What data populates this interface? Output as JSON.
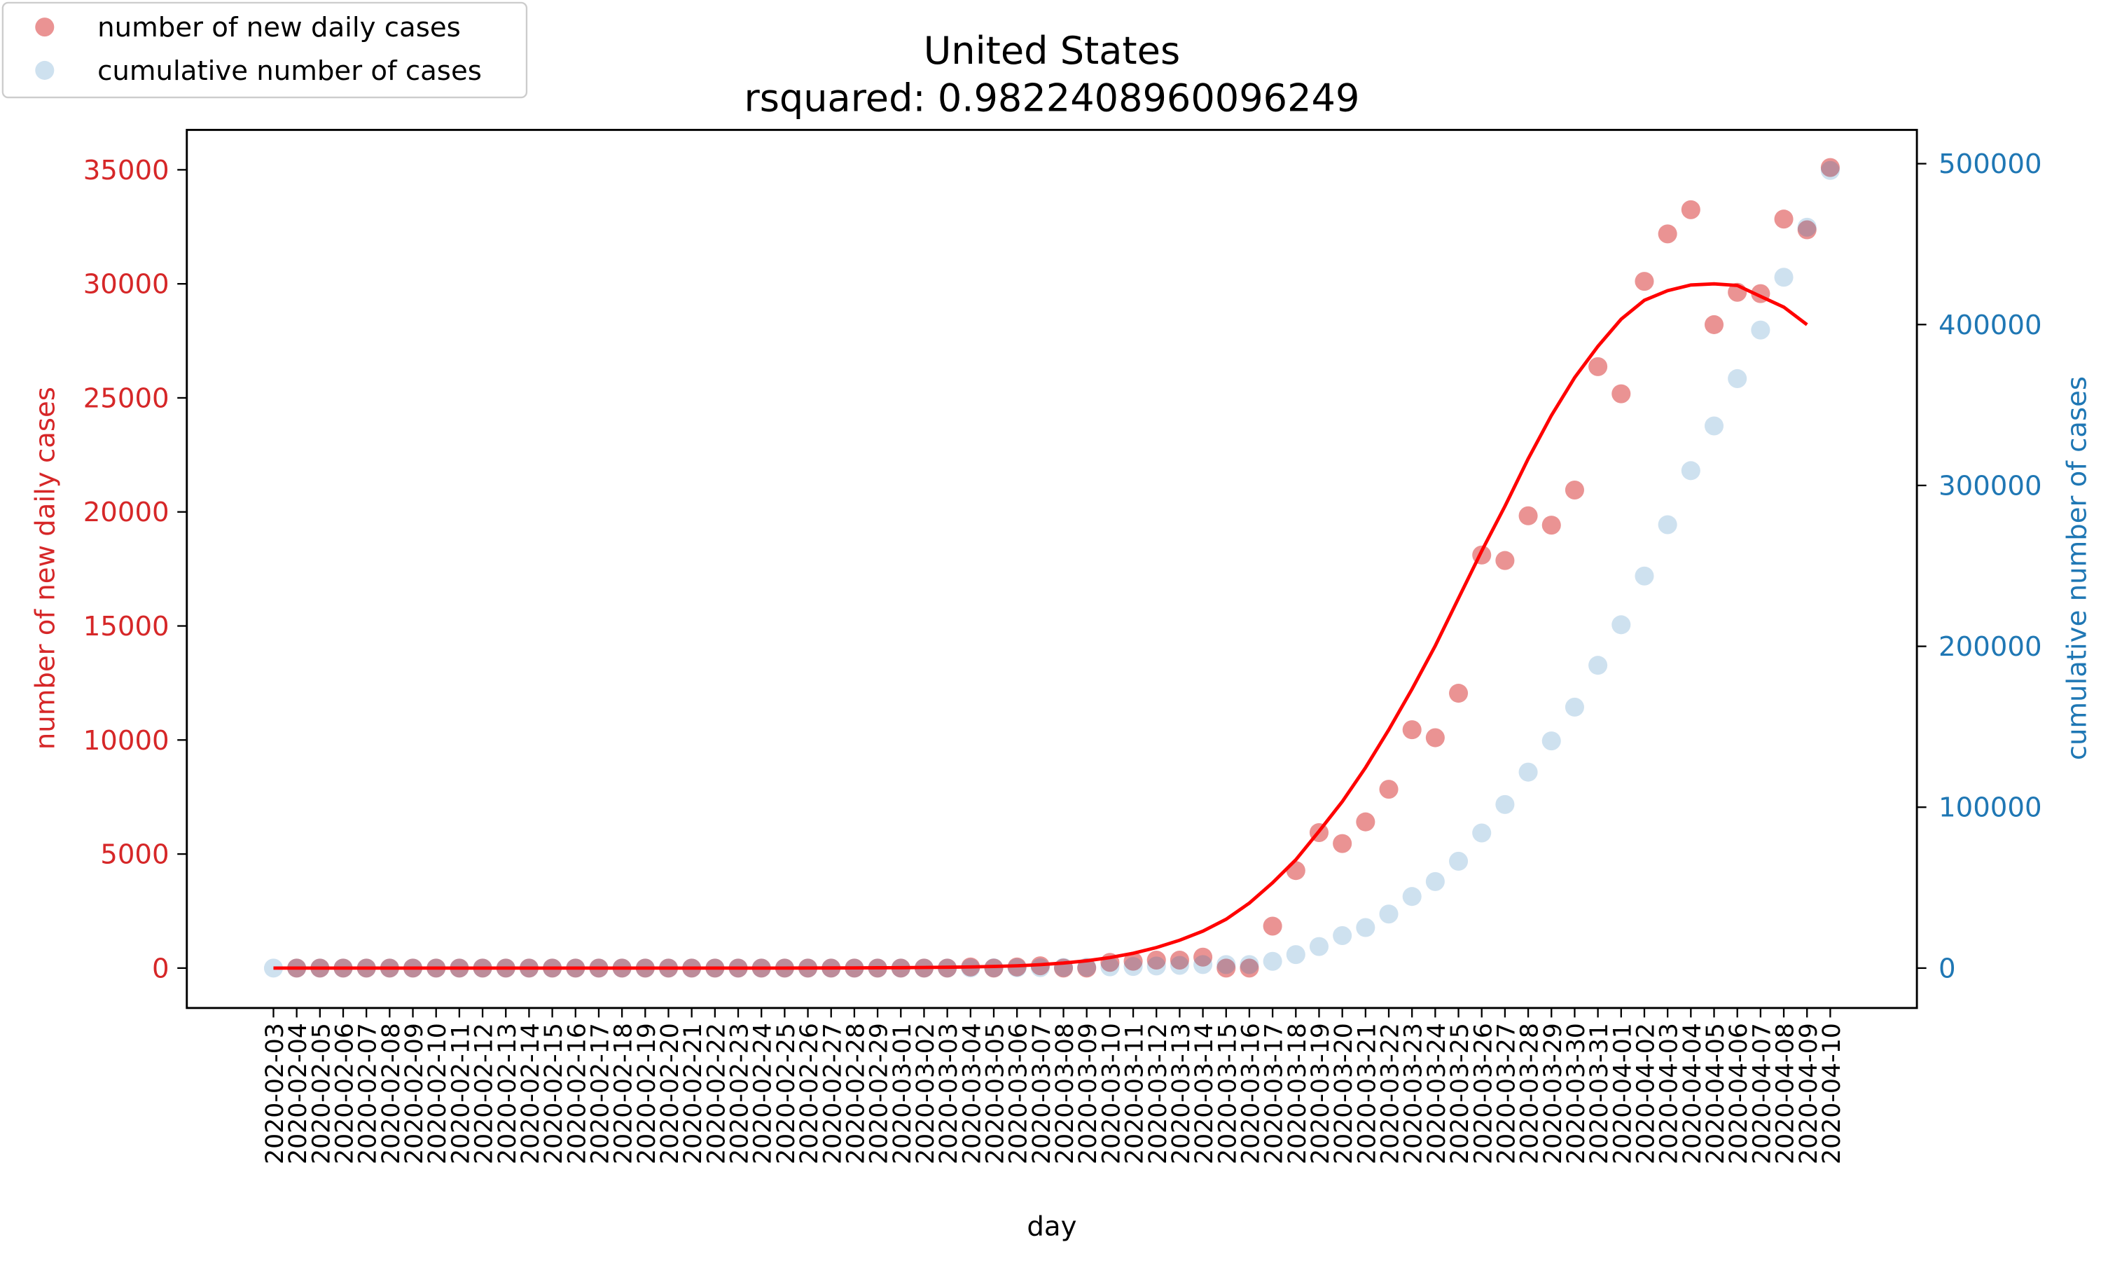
{
  "chart_data": {
    "type": "scatter",
    "title": "United States",
    "subtitle": "rsquared: 0.9822408960096249",
    "xlabel": "day",
    "ylabel": "number of new daily cases",
    "y2label": "cumulative number of cases",
    "categories": [
      "2020-02-03",
      "2020-02-04",
      "2020-02-05",
      "2020-02-06",
      "2020-02-07",
      "2020-02-08",
      "2020-02-09",
      "2020-02-10",
      "2020-02-11",
      "2020-02-12",
      "2020-02-13",
      "2020-02-14",
      "2020-02-15",
      "2020-02-16",
      "2020-02-17",
      "2020-02-18",
      "2020-02-19",
      "2020-02-20",
      "2020-02-21",
      "2020-02-22",
      "2020-02-23",
      "2020-02-24",
      "2020-02-25",
      "2020-02-26",
      "2020-02-27",
      "2020-02-28",
      "2020-02-29",
      "2020-03-01",
      "2020-03-02",
      "2020-03-03",
      "2020-03-04",
      "2020-03-05",
      "2020-03-06",
      "2020-03-07",
      "2020-03-08",
      "2020-03-09",
      "2020-03-10",
      "2020-03-11",
      "2020-03-12",
      "2020-03-13",
      "2020-03-14",
      "2020-03-15",
      "2020-03-16",
      "2020-03-17",
      "2020-03-18",
      "2020-03-19",
      "2020-03-20",
      "2020-03-21",
      "2020-03-22",
      "2020-03-23",
      "2020-03-24",
      "2020-03-25",
      "2020-03-26",
      "2020-03-27",
      "2020-03-28",
      "2020-03-29",
      "2020-03-30",
      "2020-03-31",
      "2020-04-01",
      "2020-04-02",
      "2020-04-03",
      "2020-04-04",
      "2020-04-05",
      "2020-04-06",
      "2020-04-07",
      "2020-04-08",
      "2020-04-09",
      "2020-04-10"
    ],
    "series": [
      {
        "name": "number of new daily cases",
        "color": "#d62728",
        "opacity": 0.5,
        "values": [
          null,
          0,
          0,
          0,
          0,
          0,
          0,
          0,
          0,
          0,
          0,
          0,
          0,
          0,
          0,
          0,
          0,
          0,
          0,
          0,
          0,
          0,
          0,
          0,
          0,
          0,
          0,
          0,
          0,
          0,
          50,
          0,
          50,
          100,
          0,
          0,
          250,
          300,
          350,
          350,
          480,
          0,
          0,
          1840,
          4275,
          5940,
          5460,
          6410,
          7840,
          10450,
          10100,
          12050,
          18110,
          17870,
          19830,
          19420,
          20960,
          26370,
          25180,
          30110,
          32190,
          33250,
          28210,
          29630,
          29570,
          32840,
          32370,
          35100
        ]
      },
      {
        "name": "cumulative number of cases",
        "color": "#1f77b4",
        "opacity": 0.22,
        "axis": "y2",
        "values": [
          0,
          0,
          0,
          0,
          0,
          0,
          0,
          0,
          0,
          0,
          0,
          0,
          0,
          0,
          0,
          0,
          0,
          0,
          0,
          0,
          0,
          0,
          0,
          0,
          0,
          0,
          0,
          0,
          0,
          0,
          100,
          150,
          200,
          300,
          400,
          550,
          750,
          1000,
          1300,
          1700,
          2200,
          2200,
          2200,
          4200,
          8400,
          13400,
          20200,
          25200,
          33600,
          44500,
          53800,
          66400,
          84000,
          101700,
          121800,
          141200,
          162200,
          188200,
          213400,
          243700,
          275600,
          309200,
          337000,
          366400,
          396600,
          429400,
          460500,
          495800
        ]
      },
      {
        "type": "line",
        "color": "#ff0000",
        "values": [
          0,
          0,
          0,
          0,
          0,
          0,
          0,
          0,
          0,
          0,
          0,
          0,
          0,
          0,
          0,
          0,
          0,
          0,
          0,
          0,
          0,
          0,
          0,
          3,
          5,
          8,
          12,
          18,
          26,
          36,
          50,
          70,
          100,
          150,
          220,
          320,
          460,
          650,
          900,
          1220,
          1620,
          2140,
          2850,
          3740,
          4750,
          6000,
          7300,
          8790,
          10450,
          12230,
          14130,
          16210,
          18290,
          20250,
          22330,
          24230,
          25890,
          27260,
          28450,
          29280,
          29700,
          29950,
          30000,
          29930,
          29450,
          28980,
          28210,
          null
        ]
      }
    ],
    "ylim": [
      -1750,
      36750
    ],
    "yticks": [
      0,
      5000,
      10000,
      15000,
      20000,
      25000,
      30000,
      35000
    ],
    "y2lim": [
      -24800,
      521000
    ],
    "y2ticks": [
      0,
      100000,
      200000,
      300000,
      400000,
      500000
    ],
    "ycolor": "#d62728",
    "y2color": "#1f77b4",
    "legend": "upper left",
    "grid": false
  }
}
